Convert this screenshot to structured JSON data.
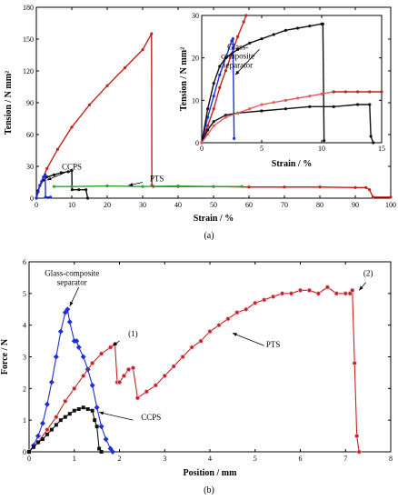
{
  "figure": {
    "panel_labels": [
      "(a)",
      "(b)"
    ]
  },
  "colors": {
    "pts": "#c0241c",
    "ccps": "#111111",
    "glass": "#1f2fd6",
    "pts_fill": "#e06060",
    "green": "#2ca02c"
  },
  "chart_data": [
    {
      "id": "a-main",
      "type": "line",
      "xlabel": "Strain / %",
      "ylabel": "Tension / N mm²",
      "xlim": [
        0,
        100
      ],
      "ylim": [
        0,
        180
      ],
      "xticks": [
        0,
        10,
        20,
        30,
        40,
        50,
        60,
        70,
        80,
        90,
        100
      ],
      "yticks": [
        0,
        30,
        60,
        90,
        120,
        150,
        180
      ],
      "annotations": [
        {
          "text": "CCPS",
          "x": 10,
          "y": 27
        },
        {
          "text": "PTS",
          "x": 34,
          "y": 16
        }
      ],
      "series": [
        {
          "id": "pts-main",
          "color": "pts",
          "x": [
            0,
            1,
            3,
            6,
            10,
            15,
            20,
            25,
            30,
            32.5,
            32.6,
            33,
            40,
            50,
            60,
            70,
            80,
            90,
            93,
            94,
            95,
            100
          ],
          "y": [
            0,
            12,
            28,
            46,
            67,
            88,
            106,
            123,
            140,
            155,
            12,
            11,
            11,
            11,
            10.5,
            10.5,
            10.5,
            10,
            10,
            8,
            1,
            1
          ]
        },
        {
          "id": "ccps-main",
          "color": "ccps",
          "x": [
            0,
            0.5,
            1,
            2,
            3,
            5,
            7,
            9,
            10,
            10.1,
            12,
            14,
            14.5
          ],
          "y": [
            0,
            7,
            12,
            17,
            20,
            22,
            24,
            25,
            26,
            8,
            8,
            8,
            0
          ]
        },
        {
          "id": "glass-main",
          "color": "glass",
          "x": [
            0,
            0.5,
            1,
            1.5,
            2,
            2.5,
            2.6,
            4
          ],
          "y": [
            0,
            6,
            12,
            16,
            20,
            22,
            1,
            1
          ]
        },
        {
          "id": "green-main",
          "color": "green",
          "x": [
            5,
            10,
            20,
            30,
            40,
            50,
            58
          ],
          "y": [
            11,
            11,
            11.5,
            11,
            11.5,
            11,
            11
          ]
        }
      ]
    },
    {
      "id": "a-inset",
      "type": "line",
      "xlabel": "Strain / %",
      "ylabel": "Tension / N mm²",
      "xlim": [
        0,
        15
      ],
      "ylim": [
        0,
        30
      ],
      "xticks": [
        0,
        5,
        10,
        15
      ],
      "yticks": [
        0,
        10,
        20,
        30
      ],
      "annotations": [
        {
          "lines": [
            "Glass-",
            "composite",
            "separator"
          ],
          "x": 3,
          "y": 22
        }
      ],
      "series": [
        {
          "id": "pts-inset",
          "color": "pts",
          "x": [
            0,
            0.5,
            1,
            1.5,
            2,
            2.5,
            3,
            3.5,
            3.7
          ],
          "y": [
            0,
            4,
            8,
            13,
            17,
            21,
            25,
            28.5,
            30
          ]
        },
        {
          "id": "glass-inset",
          "color": "glass",
          "x": [
            0,
            0.5,
            1,
            1.5,
            2,
            2.5,
            2.6,
            2.7
          ],
          "y": [
            0,
            6,
            11,
            16,
            20,
            24,
            24.5,
            1
          ]
        },
        {
          "id": "ccps-upper",
          "color": "ccps",
          "x": [
            0,
            0.5,
            1,
            1.5,
            2,
            3,
            4,
            5,
            6,
            7,
            8,
            9,
            10,
            10.1,
            10.2
          ],
          "y": [
            0,
            8,
            14,
            18,
            20,
            22,
            23.5,
            24.5,
            25.5,
            26.5,
            27,
            27.5,
            28,
            28,
            0.5
          ]
        },
        {
          "id": "ccps-lower",
          "color": "ccps",
          "x": [
            0,
            0.5,
            1,
            2,
            3,
            5,
            7,
            9,
            11,
            13,
            14,
            14.1,
            14.3
          ],
          "y": [
            0,
            3,
            5,
            6.5,
            7,
            7.5,
            8,
            8.5,
            8.5,
            9,
            9,
            1.5,
            0
          ]
        },
        {
          "id": "pts-lower",
          "color": "pts_fill",
          "x": [
            0,
            0.5,
            1,
            2,
            3,
            4,
            5,
            6,
            7,
            8,
            9,
            10,
            11
          ],
          "y": [
            0,
            2,
            4,
            6,
            7,
            8,
            9,
            9.5,
            10,
            10.5,
            11,
            11.5,
            12
          ]
        },
        {
          "id": "pts-tail",
          "color": "pts",
          "x": [
            11,
            12,
            13,
            14,
            15
          ],
          "y": [
            12,
            12,
            12,
            12,
            12
          ]
        }
      ]
    },
    {
      "id": "b",
      "type": "line",
      "xlabel": "Position / mm",
      "ylabel": "Force / N",
      "xlim": [
        0,
        8
      ],
      "ylim": [
        0,
        6
      ],
      "xticks": [
        0,
        1,
        2,
        3,
        4,
        5,
        6,
        7,
        8
      ],
      "yticks": [
        0,
        1,
        2,
        3,
        4,
        5,
        6
      ],
      "annotations": [
        {
          "lines": [
            "Glass-composite",
            "separator"
          ],
          "x": 0.95,
          "y": 5.55
        },
        {
          "text": "(1)",
          "x": 2.3,
          "y": 3.65
        },
        {
          "text": "(2)",
          "x": 7.5,
          "y": 5.55
        },
        {
          "text": "PTS",
          "x": 5.4,
          "y": 3.3
        },
        {
          "text": "CCPS",
          "x": 2.7,
          "y": 1.0
        }
      ],
      "series": [
        {
          "id": "glass-b",
          "color": "glass",
          "x": [
            0,
            0.1,
            0.2,
            0.3,
            0.4,
            0.5,
            0.6,
            0.7,
            0.8,
            0.85,
            0.9,
            1.0,
            1.05,
            1.1,
            1.2,
            1.3,
            1.4,
            1.5,
            1.6,
            1.7,
            1.8,
            1.85
          ],
          "y": [
            0,
            0.2,
            0.5,
            0.9,
            1.5,
            2.2,
            3.0,
            3.8,
            4.4,
            4.5,
            4.1,
            3.5,
            3.5,
            3.3,
            3.0,
            2.6,
            2.1,
            1.4,
            0.8,
            0.4,
            0.1,
            0
          ]
        },
        {
          "id": "pts-b",
          "color": "pts",
          "x": [
            0,
            0.2,
            0.4,
            0.6,
            0.8,
            1.0,
            1.2,
            1.4,
            1.6,
            1.8,
            1.9,
            1.95,
            2.0,
            2.1,
            2.2,
            2.3,
            2.4,
            2.6,
            2.8,
            3.0,
            3.2,
            3.4,
            3.6,
            3.8,
            4.0,
            4.2,
            4.4,
            4.6,
            4.8,
            5.0,
            5.2,
            5.4,
            5.6,
            5.8,
            6.0,
            6.2,
            6.4,
            6.6,
            6.8,
            7.0,
            7.1,
            7.15,
            7.2,
            7.25,
            7.3
          ],
          "y": [
            0,
            0.3,
            0.7,
            1.1,
            1.6,
            2.0,
            2.4,
            2.8,
            3.1,
            3.3,
            3.4,
            2.2,
            2.2,
            2.4,
            2.6,
            2.65,
            1.7,
            1.9,
            2.1,
            2.4,
            2.7,
            3.0,
            3.3,
            3.5,
            3.8,
            4.0,
            4.2,
            4.4,
            4.5,
            4.7,
            4.8,
            4.9,
            5.0,
            5.0,
            5.1,
            5.1,
            5.0,
            5.2,
            5.0,
            5.0,
            5.0,
            5.1,
            2.8,
            0.5,
            0
          ]
        },
        {
          "id": "ccps-b",
          "color": "ccps",
          "x": [
            0,
            0.1,
            0.2,
            0.3,
            0.4,
            0.5,
            0.6,
            0.7,
            0.8,
            0.9,
            1.0,
            1.1,
            1.2,
            1.3,
            1.4,
            1.45,
            1.5,
            1.55,
            1.6
          ],
          "y": [
            0,
            0.15,
            0.3,
            0.4,
            0.55,
            0.7,
            0.85,
            1.0,
            1.1,
            1.2,
            1.3,
            1.35,
            1.4,
            1.35,
            1.3,
            1.0,
            0.8,
            0.1,
            0
          ]
        }
      ]
    }
  ]
}
